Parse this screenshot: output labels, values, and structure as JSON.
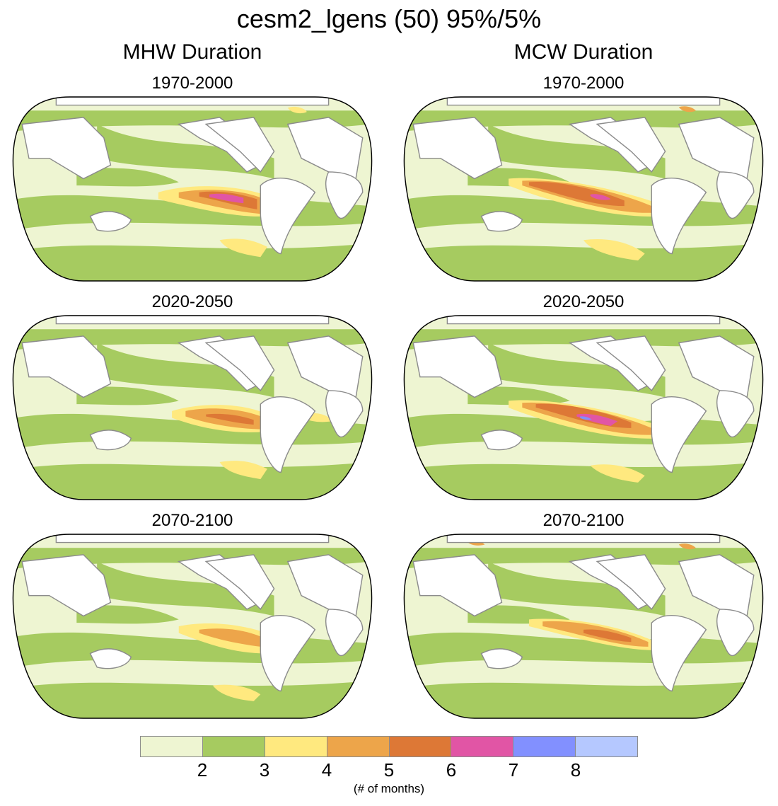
{
  "figure_title": "cesm2_lgens (50) 95%/5%",
  "columns": [
    {
      "title": "MHW Duration"
    },
    {
      "title": "MCW Duration"
    }
  ],
  "panels": [
    {
      "column": "MHW Duration",
      "period": "1970-2000"
    },
    {
      "column": "MCW Duration",
      "period": "1970-2000"
    },
    {
      "column": "MHW Duration",
      "period": "2020-2050"
    },
    {
      "column": "MCW Duration",
      "period": "2020-2050"
    },
    {
      "column": "MHW Duration",
      "period": "2070-2100"
    },
    {
      "column": "MCW Duration",
      "period": "2070-2100"
    }
  ],
  "colorbar": {
    "colors": [
      "#eef5d2",
      "#a6cb60",
      "#ffe97f",
      "#eda54a",
      "#dd7836",
      "#e155a5",
      "#8290ff",
      "#b5c8ff"
    ],
    "tick_labels": [
      "2",
      "3",
      "4",
      "5",
      "6",
      "7",
      "8"
    ],
    "units": "(# of months)"
  },
  "style": {
    "ocean_light": "#eef5d2",
    "ocean_green": "#a6cb60",
    "land": "#ffffff",
    "coast": "#8c8c8c"
  }
}
